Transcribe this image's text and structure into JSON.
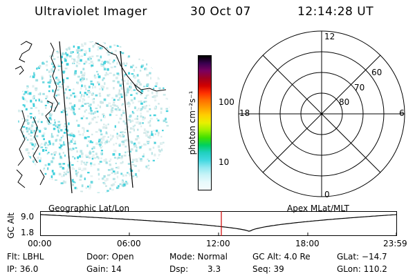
{
  "header": {
    "instrument": "Ultraviolet Imager",
    "date": "30 Oct 07",
    "time": "12:14:28 UT"
  },
  "colorbar": {
    "label": "photon cm⁻²s⁻¹",
    "ticks": [
      "100",
      "10"
    ],
    "colors": [
      "#000000",
      "#3a0050",
      "#7a0060",
      "#a00020",
      "#d00000",
      "#ff3000",
      "#ff7000",
      "#ffa000",
      "#ffd000",
      "#e8f000",
      "#a0f000",
      "#40e000",
      "#00d060",
      "#20d0c0",
      "#40d8e0",
      "#90e8f0",
      "#c8f4f8",
      "#e8fafc",
      "#f4fcfd"
    ]
  },
  "polar": {
    "mlt_labels": {
      "top": "12",
      "left": "18",
      "right": "6",
      "bottom": "0"
    },
    "lat_labels": [
      "60",
      "70",
      "80"
    ]
  },
  "plot": {
    "left_title": "Geographic Lat/Lon",
    "right_title": "Apex MLat/MLT",
    "ylabel": "GC Alt",
    "yticks": [
      "9.0",
      "1.8"
    ],
    "xticks": [
      "00:00",
      "06:00",
      "12:00",
      "18:00",
      "23:59"
    ]
  },
  "footer": {
    "flt": "Flt: LBHL",
    "ip": "IP: 36.0",
    "door": "Door: Open",
    "gain": "Gain: 14",
    "mode": "Mode: Normal",
    "dsp_label": "Dsp:",
    "dsp_value": "3.3",
    "gcalt": "GC Alt: 4.0 Re",
    "seq": "Seq: 39",
    "glat": "GLat: −14.7",
    "glon": "GLon: 110.2"
  }
}
